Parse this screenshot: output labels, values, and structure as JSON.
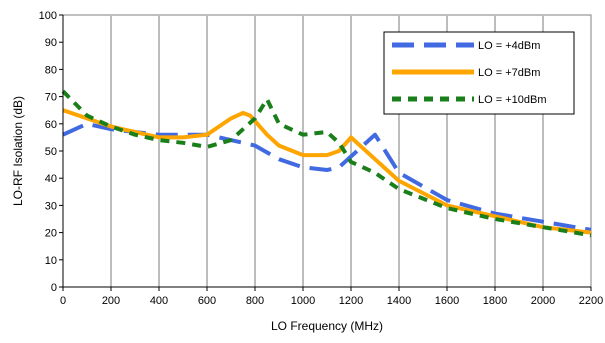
{
  "chart_data": {
    "type": "line",
    "title": "",
    "xlabel": "LO Frequency (MHz)",
    "ylabel": "LO-RF Isolation (dB)",
    "xlim": [
      0,
      2200
    ],
    "ylim": [
      0,
      100
    ],
    "x_ticks": [
      0,
      200,
      400,
      600,
      800,
      1000,
      1200,
      1400,
      1600,
      1800,
      2000,
      2200
    ],
    "y_ticks": [
      0,
      10,
      20,
      30,
      40,
      50,
      60,
      70,
      80,
      90,
      100
    ],
    "grid": "vertical",
    "legend_position": "top-right",
    "series": [
      {
        "name": "LO = +4dBm",
        "color": "#4169e1",
        "dash": "long-dash",
        "points": [
          [
            0,
            56
          ],
          [
            100,
            60
          ],
          [
            200,
            58
          ],
          [
            300,
            57
          ],
          [
            400,
            56
          ],
          [
            500,
            56
          ],
          [
            600,
            56
          ],
          [
            700,
            54
          ],
          [
            800,
            52
          ],
          [
            900,
            47
          ],
          [
            1000,
            44
          ],
          [
            1100,
            43
          ],
          [
            1150,
            44
          ],
          [
            1250,
            52
          ],
          [
            1300,
            56
          ],
          [
            1400,
            42
          ],
          [
            1600,
            32
          ],
          [
            1800,
            27
          ],
          [
            2000,
            24
          ],
          [
            2200,
            21
          ]
        ]
      },
      {
        "name": "LO = +7dBm",
        "color": "#ffa500",
        "dash": "solid",
        "points": [
          [
            0,
            65
          ],
          [
            100,
            62
          ],
          [
            200,
            59
          ],
          [
            300,
            57
          ],
          [
            400,
            55
          ],
          [
            500,
            55
          ],
          [
            600,
            56
          ],
          [
            700,
            62
          ],
          [
            750,
            64
          ],
          [
            780,
            63
          ],
          [
            850,
            56
          ],
          [
            900,
            52
          ],
          [
            1000,
            48.5
          ],
          [
            1100,
            48.5
          ],
          [
            1150,
            50
          ],
          [
            1200,
            55
          ],
          [
            1300,
            47
          ],
          [
            1400,
            39
          ],
          [
            1600,
            30
          ],
          [
            1800,
            26
          ],
          [
            2000,
            22
          ],
          [
            2200,
            20
          ]
        ]
      },
      {
        "name": "LO = +10dBm",
        "color": "#1a7f1a",
        "dash": "short-dash",
        "points": [
          [
            0,
            72
          ],
          [
            100,
            63
          ],
          [
            200,
            59
          ],
          [
            300,
            56
          ],
          [
            400,
            54
          ],
          [
            500,
            53
          ],
          [
            600,
            51.5
          ],
          [
            700,
            54
          ],
          [
            800,
            62
          ],
          [
            850,
            69
          ],
          [
            900,
            60
          ],
          [
            1000,
            56
          ],
          [
            1100,
            57
          ],
          [
            1150,
            53
          ],
          [
            1200,
            46
          ],
          [
            1300,
            42
          ],
          [
            1400,
            36
          ],
          [
            1600,
            29
          ],
          [
            1800,
            25
          ],
          [
            2000,
            22
          ],
          [
            2200,
            19
          ]
        ]
      }
    ]
  }
}
